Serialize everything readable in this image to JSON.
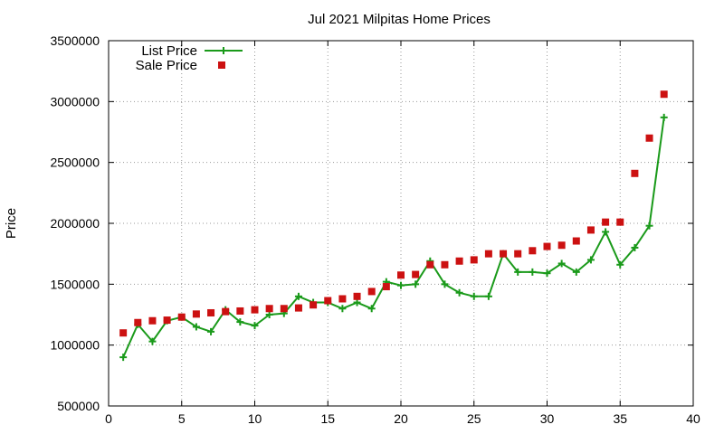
{
  "chart_data": {
    "type": "line",
    "title": "Jul 2021 Milpitas Home Prices",
    "xlabel": "",
    "ylabel": "Price",
    "xlim": [
      0,
      40
    ],
    "ylim": [
      500000,
      3500000
    ],
    "x_ticks": [
      0,
      5,
      10,
      15,
      20,
      25,
      30,
      35,
      40
    ],
    "y_ticks": [
      500000,
      1000000,
      1500000,
      2000000,
      2500000,
      3000000,
      3500000
    ],
    "grid": true,
    "legend_position": "top-left",
    "x": [
      1,
      2,
      3,
      4,
      5,
      6,
      7,
      8,
      9,
      10,
      11,
      12,
      13,
      14,
      15,
      16,
      17,
      18,
      19,
      20,
      21,
      22,
      23,
      24,
      25,
      26,
      27,
      28,
      29,
      30,
      31,
      32,
      33,
      34,
      35,
      36,
      37,
      38
    ],
    "series": [
      {
        "name": "List Price",
        "style": "line-points",
        "color": "#1a9a1a",
        "marker": "plus",
        "values": [
          900000,
          1170000,
          1030000,
          1200000,
          1230000,
          1150000,
          1110000,
          1290000,
          1190000,
          1160000,
          1250000,
          1260000,
          1400000,
          1350000,
          1350000,
          1300000,
          1350000,
          1300000,
          1520000,
          1490000,
          1500000,
          1690000,
          1500000,
          1430000,
          1400000,
          1400000,
          1750000,
          1600000,
          1600000,
          1590000,
          1670000,
          1600000,
          1700000,
          1930000,
          1660000,
          1800000,
          1980000,
          2870000
        ]
      },
      {
        "name": "Sale Price",
        "style": "points",
        "color": "#cc1111",
        "marker": "square",
        "values": [
          1100000,
          1185000,
          1200000,
          1205000,
          1230000,
          1255000,
          1265000,
          1275000,
          1280000,
          1290000,
          1300000,
          1300000,
          1305000,
          1330000,
          1365000,
          1380000,
          1400000,
          1440000,
          1480000,
          1575000,
          1580000,
          1660000,
          1660000,
          1690000,
          1700000,
          1750000,
          1750000,
          1750000,
          1775000,
          1810000,
          1820000,
          1855000,
          1945000,
          2010000,
          2010000,
          2410000,
          2700000,
          3060000
        ]
      }
    ]
  }
}
